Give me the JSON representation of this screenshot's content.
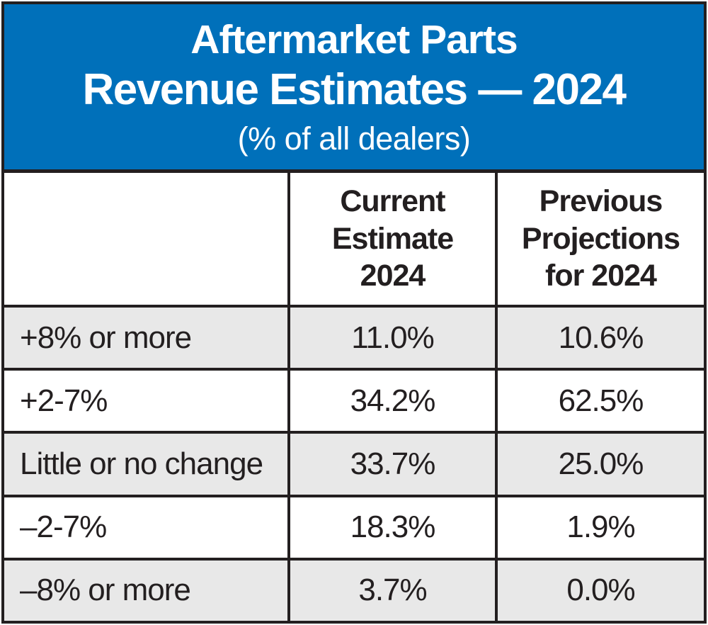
{
  "colors": {
    "header_blue": "#0070ba",
    "row_shade_gray": "#e8e8e8",
    "border_black": "#231f20",
    "title_text": "#ffffff",
    "body_text": "#231f20"
  },
  "header": {
    "title_line1": "Aftermarket Parts",
    "title_line2": "Revenue Estimates — 2024",
    "subtitle": "(% of all dealers)"
  },
  "table": {
    "column_headers": {
      "current": "Current\nEstimate\n2024",
      "previous": "Previous\nProjections\nfor 2024"
    },
    "rows": [
      {
        "label": "+8% or more",
        "current": "11.0%",
        "previous": "10.6%"
      },
      {
        "label": "+2-7%",
        "current": "34.2%",
        "previous": "62.5%"
      },
      {
        "label": "Little or no change",
        "current": "33.7%",
        "previous": "25.0%"
      },
      {
        "label": "–2-7%",
        "current": "18.3%",
        "previous": "1.9%"
      },
      {
        "label": "–8% or more",
        "current": "3.7%",
        "previous": "0.0%"
      }
    ]
  },
  "chart_data": {
    "type": "table",
    "title": "Aftermarket Parts Revenue Estimates — 2024",
    "subtitle": "(% of all dealers)",
    "categories": [
      "+8% or more",
      "+2-7%",
      "Little or no change",
      "–2-7%",
      "–8% or more"
    ],
    "series": [
      {
        "name": "Current Estimate 2024",
        "values": [
          11.0,
          34.2,
          33.7,
          18.3,
          3.7
        ]
      },
      {
        "name": "Previous Projections for 2024",
        "values": [
          10.6,
          62.5,
          25.0,
          1.9,
          0.0
        ]
      }
    ],
    "unit": "%"
  }
}
